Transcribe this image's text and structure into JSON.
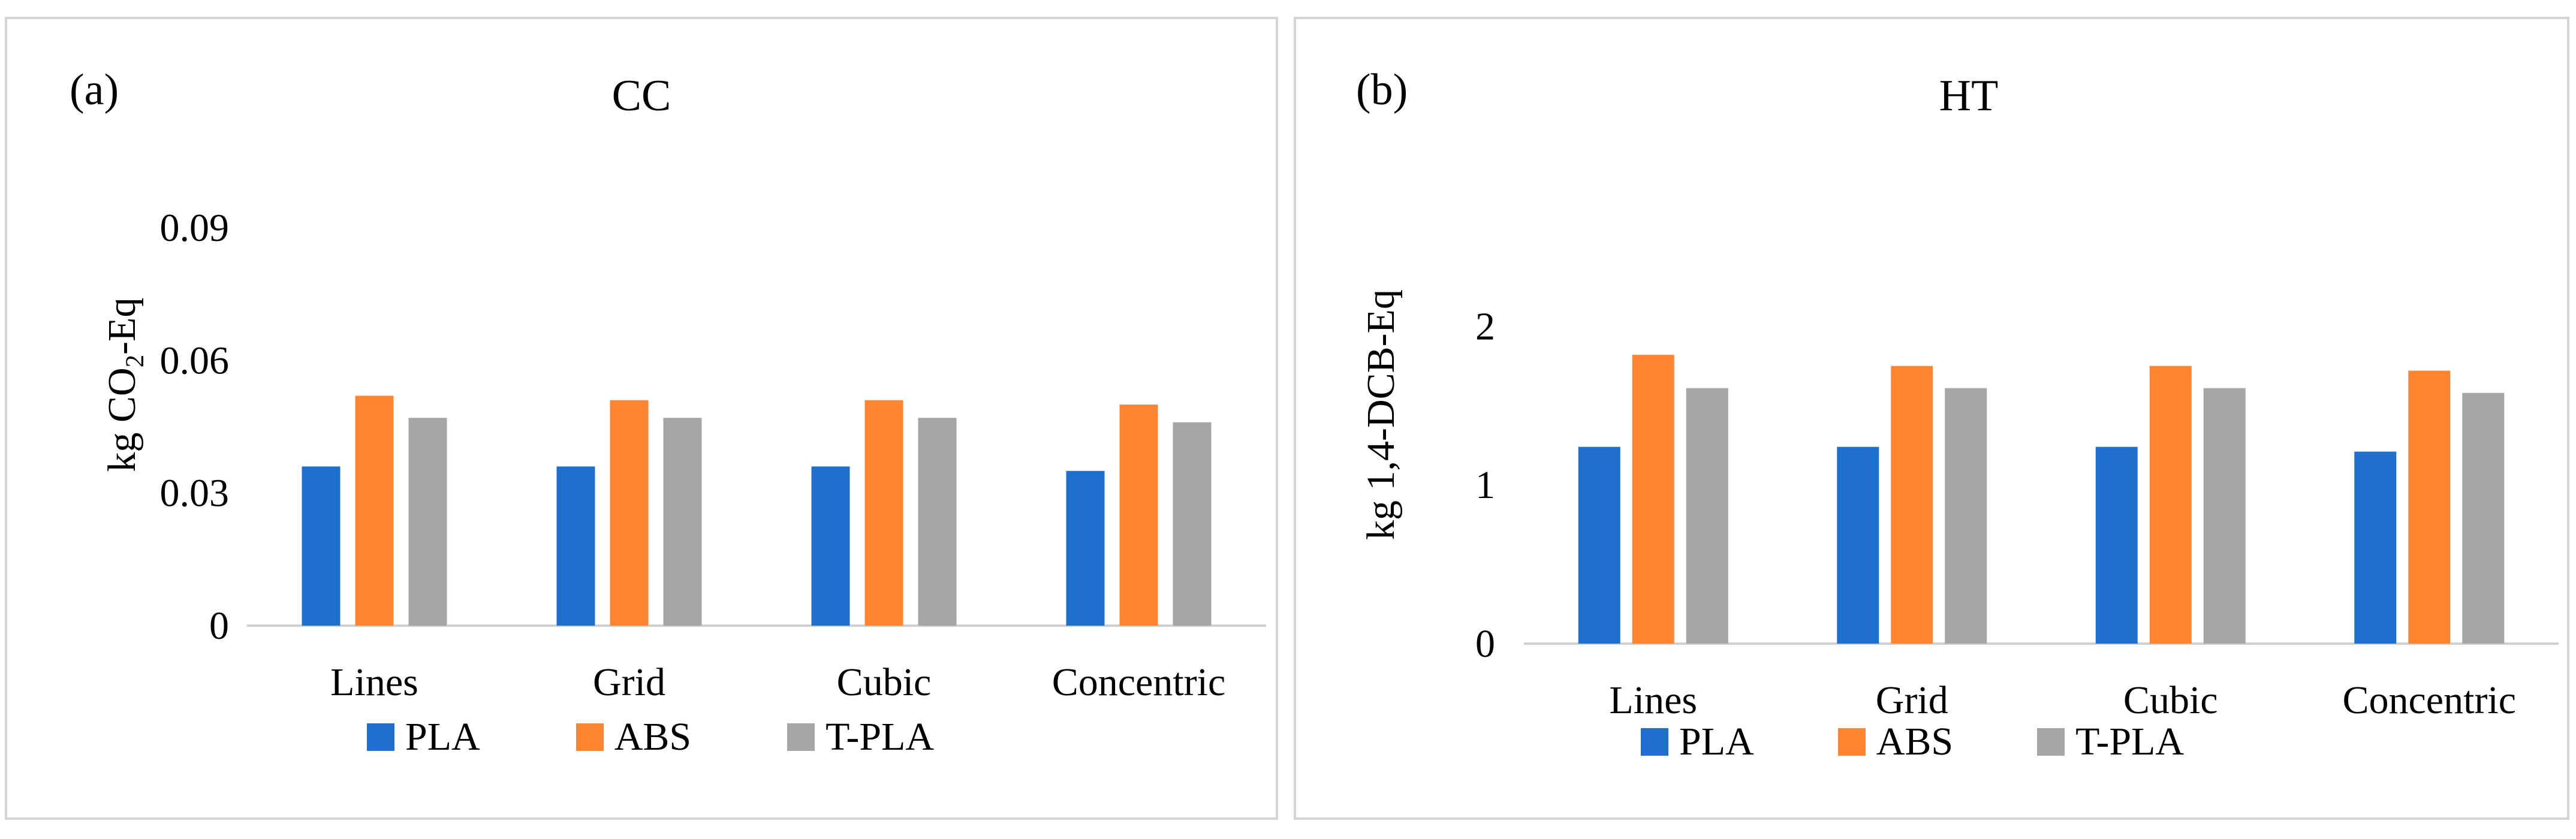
{
  "panels": [
    {
      "letter": "(a)",
      "title": "CC",
      "ylabel_pre": "kg CO",
      "ylabel_sub": "2",
      "ylabel_post": "-Eq"
    },
    {
      "letter": "(b)",
      "title": "HT",
      "ylabel_pre": "kg 1,4-DCB-Eq",
      "ylabel_sub": "",
      "ylabel_post": ""
    }
  ],
  "legend": [
    {
      "label": "PLA",
      "color": "#1f6fcc"
    },
    {
      "label": "ABS",
      "color": "#ff8533"
    },
    {
      "label": "T-PLA",
      "color": "#a6a6a6"
    }
  ],
  "chart_data": [
    {
      "type": "bar",
      "title": "CC",
      "ylabel": "kg CO2-Eq",
      "categories": [
        "Lines",
        "Grid",
        "Cubic",
        "Concentric"
      ],
      "series": [
        {
          "name": "PLA",
          "color": "#1f6fcc",
          "values": [
            0.036,
            0.036,
            0.036,
            0.035
          ]
        },
        {
          "name": "ABS",
          "color": "#ff8533",
          "values": [
            0.052,
            0.051,
            0.051,
            0.05
          ]
        },
        {
          "name": "T-PLA",
          "color": "#a6a6a6",
          "values": [
            0.047,
            0.047,
            0.047,
            0.046
          ]
        }
      ],
      "ylim": [
        0,
        0.09
      ],
      "yticks": [
        0,
        0.03,
        0.06,
        0.09
      ],
      "ytick_labels": [
        "0",
        "0.03",
        "0.06",
        "0.09"
      ],
      "grid": false,
      "legend_position": "bottom"
    },
    {
      "type": "bar",
      "title": "HT",
      "ylabel": "kg 1,4-DCB-Eq",
      "categories": [
        "Lines",
        "Grid",
        "Cubic",
        "Concentric"
      ],
      "series": [
        {
          "name": "PLA",
          "color": "#1f6fcc",
          "values": [
            1.24,
            1.24,
            1.24,
            1.21
          ]
        },
        {
          "name": "ABS",
          "color": "#ff8533",
          "values": [
            1.82,
            1.75,
            1.75,
            1.72
          ]
        },
        {
          "name": "T-PLA",
          "color": "#a6a6a6",
          "values": [
            1.61,
            1.61,
            1.61,
            1.58
          ]
        }
      ],
      "ylim": [
        0,
        2.5
      ],
      "yticks": [
        0,
        1,
        2
      ],
      "ytick_labels": [
        "0",
        "1",
        "2"
      ],
      "grid": false,
      "legend_position": "bottom"
    }
  ]
}
